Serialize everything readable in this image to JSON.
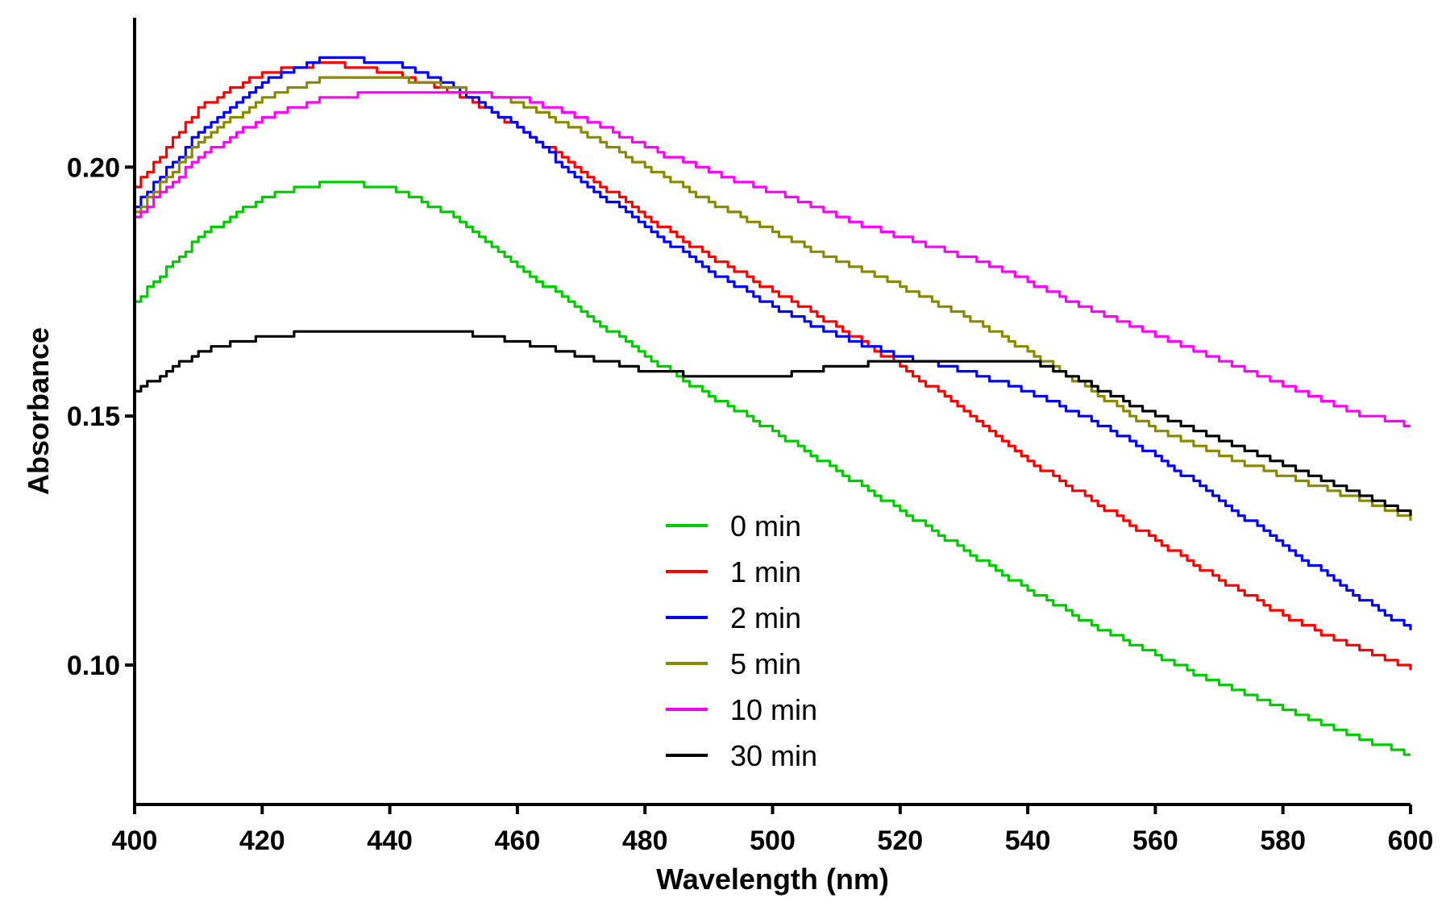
{
  "chart_data": {
    "type": "line",
    "title": "",
    "xlabel": "Wavelength (nm)",
    "ylabel": "Absorbance",
    "xlim": [
      400,
      600
    ],
    "ylim": [
      0.072,
      0.23
    ],
    "x_ticks": [
      400,
      420,
      440,
      460,
      480,
      500,
      520,
      540,
      560,
      580,
      600
    ],
    "x_tick_labels": [
      "400",
      "420",
      "440",
      "460",
      "480",
      "500",
      "520",
      "540",
      "560",
      "580",
      "600"
    ],
    "y_ticks": [
      0.1,
      0.15,
      0.2
    ],
    "y_tick_labels": [
      "0.10",
      "0.15",
      "0.20"
    ],
    "grid": false,
    "legend_position": "center-bottom",
    "x": [
      400,
      410,
      420,
      430,
      440,
      450,
      460,
      470,
      480,
      490,
      500,
      510,
      520,
      530,
      540,
      550,
      560,
      570,
      580,
      590,
      600
    ],
    "series": [
      {
        "name": "0 min",
        "color": "#00cc00",
        "values": [
          0.173,
          0.186,
          0.194,
          0.197,
          0.196,
          0.19,
          0.18,
          0.171,
          0.162,
          0.154,
          0.147,
          0.139,
          0.131,
          0.123,
          0.115,
          0.108,
          0.102,
          0.096,
          0.091,
          0.086,
          0.082
        ]
      },
      {
        "name": "1 min",
        "color": "#ff0000",
        "values": [
          0.196,
          0.212,
          0.219,
          0.221,
          0.219,
          0.215,
          0.208,
          0.199,
          0.19,
          0.182,
          0.175,
          0.168,
          0.16,
          0.151,
          0.141,
          0.133,
          0.125,
          0.117,
          0.11,
          0.104,
          0.099
        ]
      },
      {
        "name": "2 min",
        "color": "#0000ff",
        "values": [
          0.192,
          0.207,
          0.217,
          0.222,
          0.221,
          0.216,
          0.208,
          0.197,
          0.188,
          0.179,
          0.172,
          0.166,
          0.162,
          0.159,
          0.155,
          0.149,
          0.142,
          0.133,
          0.124,
          0.115,
          0.107
        ]
      },
      {
        "name": "5 min",
        "color": "#8a8a00",
        "values": [
          0.191,
          0.205,
          0.214,
          0.218,
          0.218,
          0.216,
          0.213,
          0.207,
          0.2,
          0.193,
          0.187,
          0.181,
          0.176,
          0.17,
          0.163,
          0.155,
          0.147,
          0.142,
          0.138,
          0.134,
          0.129
        ]
      },
      {
        "name": "10 min",
        "color": "#ff00ff",
        "values": [
          0.19,
          0.202,
          0.21,
          0.214,
          0.215,
          0.215,
          0.214,
          0.21,
          0.204,
          0.199,
          0.195,
          0.19,
          0.186,
          0.182,
          0.177,
          0.171,
          0.166,
          0.161,
          0.156,
          0.151,
          0.148
        ]
      },
      {
        "name": "30 min",
        "color": "#000000",
        "values": [
          0.155,
          0.163,
          0.166,
          0.167,
          0.167,
          0.167,
          0.165,
          0.162,
          0.159,
          0.158,
          0.158,
          0.16,
          0.161,
          0.161,
          0.161,
          0.156,
          0.15,
          0.145,
          0.14,
          0.135,
          0.13
        ]
      }
    ]
  }
}
